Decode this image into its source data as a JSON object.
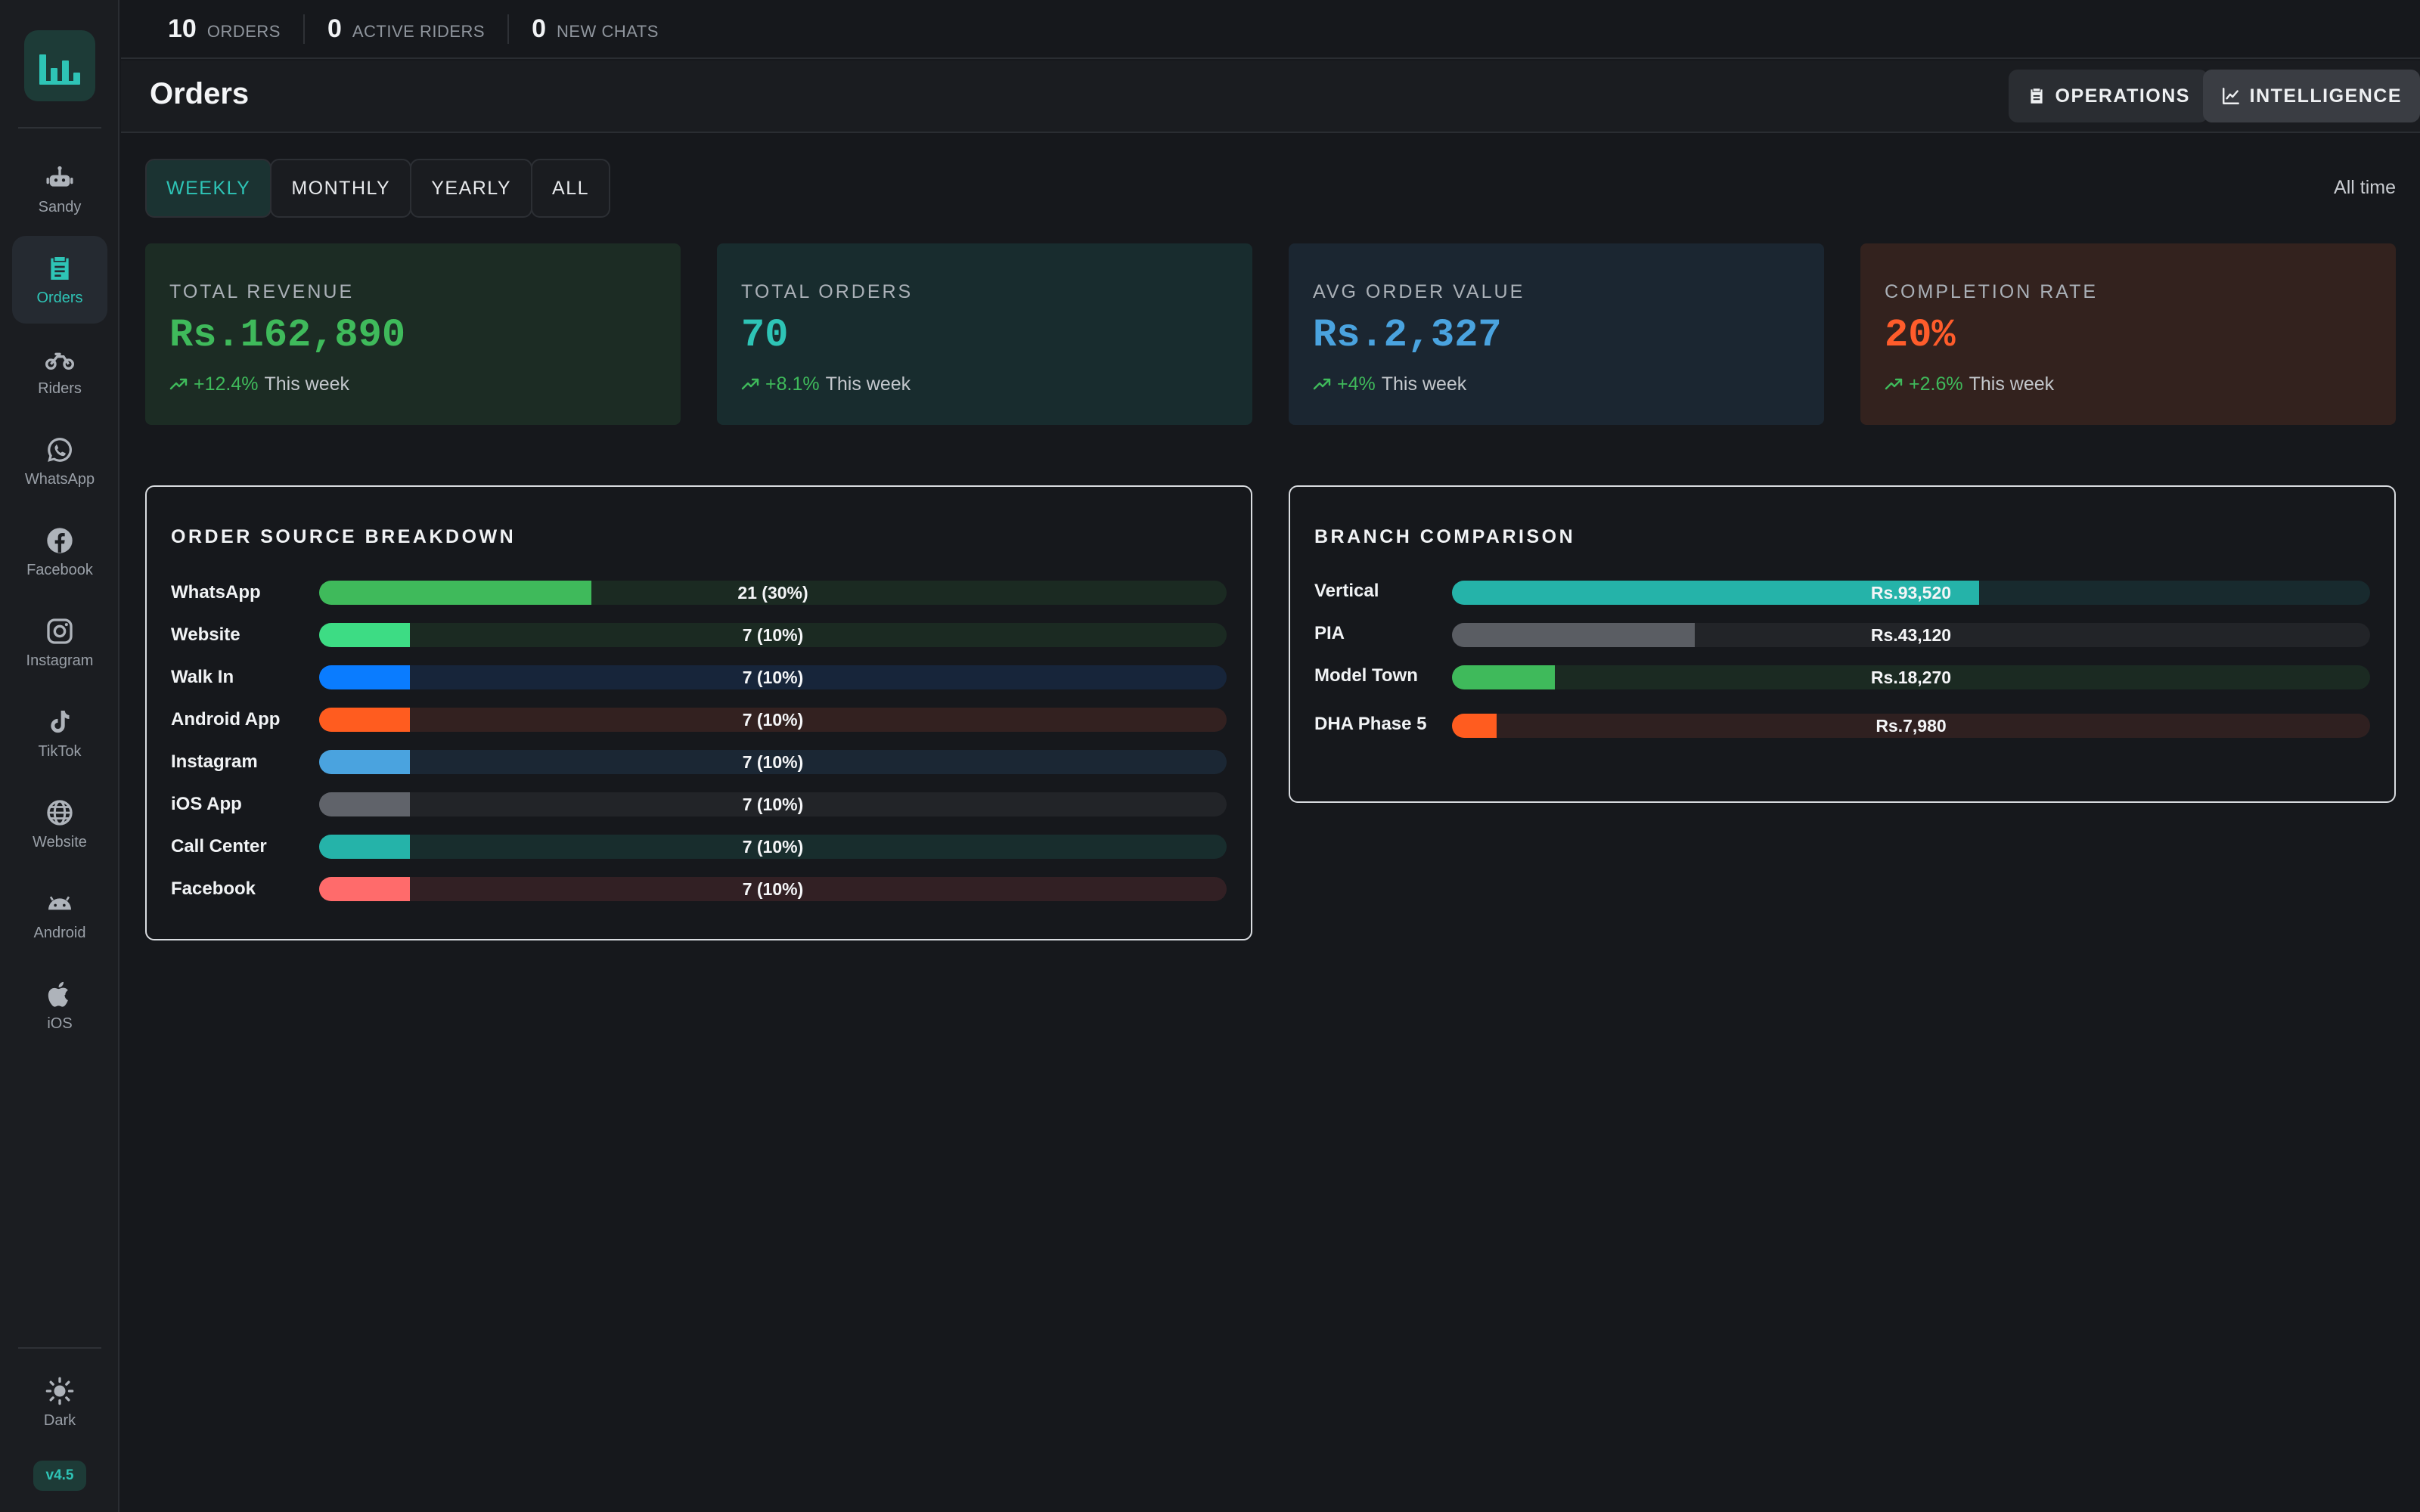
{
  "sidebar": {
    "items": [
      {
        "label": "Sandy",
        "icon": "robot-icon"
      },
      {
        "label": "Orders",
        "icon": "clipboard-icon",
        "active": true
      },
      {
        "label": "Riders",
        "icon": "motorbike-icon"
      },
      {
        "label": "WhatsApp",
        "icon": "whatsapp-icon"
      },
      {
        "label": "Facebook",
        "icon": "facebook-icon"
      },
      {
        "label": "Instagram",
        "icon": "instagram-icon"
      },
      {
        "label": "TikTok",
        "icon": "tiktok-icon"
      },
      {
        "label": "Website",
        "icon": "globe-icon"
      },
      {
        "label": "Android",
        "icon": "android-icon"
      },
      {
        "label": "iOS",
        "icon": "apple-icon"
      }
    ],
    "theme_label": "Dark",
    "version": "v4.5"
  },
  "topbar": {
    "stats": [
      {
        "value": "10",
        "label": "ORDERS"
      },
      {
        "value": "0",
        "label": "ACTIVE RIDERS"
      },
      {
        "value": "0",
        "label": "NEW CHATS"
      }
    ]
  },
  "header": {
    "title": "Orders",
    "operations_label": "OPERATIONS",
    "intelligence_label": "INTELLIGENCE"
  },
  "filters": {
    "options": [
      "WEEKLY",
      "MONTHLY",
      "YEARLY",
      "ALL"
    ],
    "selected": "WEEKLY",
    "range_label": "All time"
  },
  "kpis": [
    {
      "title": "TOTAL REVENUE",
      "value": "Rs.162,890",
      "delta": "+12.4%",
      "period": "This week",
      "color": "#3fba5b",
      "bg": "#1c2c24"
    },
    {
      "title": "TOTAL ORDERS",
      "value": "70",
      "delta": "+8.1%",
      "period": "This week",
      "color": "#2ec4b6",
      "bg": "#182c2e"
    },
    {
      "title": "AVG ORDER VALUE",
      "value": "Rs.2,327",
      "delta": "+4%",
      "period": "This week",
      "color": "#4aa3df",
      "bg": "#1b2631"
    },
    {
      "title": "COMPLETION RATE",
      "value": "20%",
      "delta": "+2.6%",
      "period": "This week",
      "color": "#ff5c2b",
      "bg": "#33221e"
    }
  ],
  "chart_data": [
    {
      "type": "bar",
      "title": "ORDER SOURCE BREAKDOWN",
      "categories": [
        "WhatsApp",
        "Website",
        "Walk In",
        "Android App",
        "Instagram",
        "iOS App",
        "Call Center",
        "Facebook"
      ],
      "values": [
        21,
        7,
        7,
        7,
        7,
        7,
        7,
        7
      ],
      "labels": [
        "21 (30%)",
        "7 (10%)",
        "7 (10%)",
        "7 (10%)",
        "7 (10%)",
        "7 (10%)",
        "7 (10%)",
        "7 (10%)"
      ],
      "colors": [
        "#3fba5b",
        "#3ddc84",
        "#0a7cff",
        "#ff5c1f",
        "#4aa3df",
        "#60636a",
        "#25b3a9",
        "#ff6b6b"
      ],
      "track_colors": [
        "#1b2a22",
        "#1b2a22",
        "#17253a",
        "#332120",
        "#1b2734",
        "#222428",
        "#182d2d",
        "#322024"
      ],
      "xlim": [
        0,
        70
      ]
    },
    {
      "type": "bar",
      "title": "BRANCH COMPARISON",
      "categories": [
        "Vertical",
        "PIA",
        "Model Town",
        "DHA Phase 5"
      ],
      "values": [
        93520,
        43120,
        18270,
        7980
      ],
      "labels": [
        "Rs.93,520",
        "Rs.43,120",
        "Rs.18,270",
        "Rs.7,980"
      ],
      "colors": [
        "#25b3a9",
        "#5a5d63",
        "#3fba5b",
        "#ff5c1f"
      ],
      "track_colors": [
        "#182a2e",
        "#222428",
        "#1b2a22",
        "#2f2020"
      ],
      "xlim": [
        0,
        162890
      ]
    }
  ]
}
